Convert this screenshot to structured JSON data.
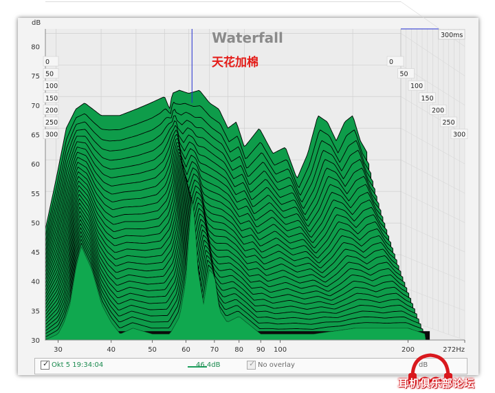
{
  "chart_data": {
    "type": "area",
    "title": "Waterfall",
    "annotation": "天花加棉",
    "ylabel": "dB",
    "xunit": "Hz",
    "ylim": [
      30,
      83
    ],
    "xlim": [
      28,
      272
    ],
    "xscale": "log",
    "y_ticks": [
      "30",
      "35",
      "40",
      "45",
      "50",
      "55",
      "60",
      "65",
      "70",
      "75",
      "80"
    ],
    "x_ticks": [
      {
        "value": 30,
        "label": "30"
      },
      {
        "value": 40,
        "label": "40"
      },
      {
        "value": 50,
        "label": "50"
      },
      {
        "value": 60,
        "label": "60"
      },
      {
        "value": 70,
        "label": "70"
      },
      {
        "value": 80,
        "label": "80"
      },
      {
        "value": 90,
        "label": "90"
      },
      {
        "value": 100,
        "label": "100"
      },
      {
        "value": 200,
        "label": "200"
      },
      {
        "value": 272,
        "label": "272Hz"
      }
    ],
    "time_axis": {
      "unit": "ms",
      "labels_left": [
        "0",
        "50",
        "100",
        "150",
        "200",
        "250",
        "300"
      ],
      "labels_right": [
        "0",
        "50",
        "100",
        "150",
        "200",
        "250",
        "300"
      ],
      "max_label": "300ms",
      "slices": 30
    },
    "cursor_hz": 62,
    "front_slice_db": [
      [
        28,
        30
      ],
      [
        30,
        31
      ],
      [
        31,
        33
      ],
      [
        32,
        36
      ],
      [
        33,
        42
      ],
      [
        34,
        46
      ],
      [
        36,
        42
      ],
      [
        38,
        36
      ],
      [
        40,
        33
      ],
      [
        42,
        31
      ],
      [
        45,
        32
      ],
      [
        50,
        31
      ],
      [
        55,
        31
      ],
      [
        58,
        34
      ],
      [
        60,
        40
      ],
      [
        61,
        48
      ],
      [
        62,
        54
      ],
      [
        63,
        50
      ],
      [
        64,
        42
      ],
      [
        66,
        36
      ],
      [
        68,
        42
      ],
      [
        70,
        41
      ],
      [
        72,
        35
      ],
      [
        75,
        33
      ],
      [
        80,
        34
      ],
      [
        90,
        31
      ],
      [
        100,
        31
      ],
      [
        120,
        31
      ],
      [
        150,
        32
      ],
      [
        200,
        32
      ],
      [
        220,
        31
      ]
    ],
    "back_slice_db": [
      [
        28,
        44
      ],
      [
        30,
        52
      ],
      [
        32,
        60
      ],
      [
        34,
        63
      ],
      [
        36,
        64
      ],
      [
        40,
        62
      ],
      [
        45,
        62
      ],
      [
        50,
        63
      ],
      [
        55,
        64
      ],
      [
        60,
        65
      ],
      [
        62,
        63
      ],
      [
        63,
        65.5
      ],
      [
        66,
        66
      ],
      [
        70,
        65.5
      ],
      [
        75,
        66
      ],
      [
        80,
        64
      ],
      [
        85,
        63
      ],
      [
        90,
        60
      ],
      [
        95,
        61
      ],
      [
        100,
        57
      ],
      [
        110,
        60
      ],
      [
        120,
        56
      ],
      [
        130,
        57
      ],
      [
        140,
        52
      ],
      [
        150,
        56
      ],
      [
        160,
        62
      ],
      [
        170,
        61
      ],
      [
        180,
        58
      ],
      [
        190,
        61
      ],
      [
        200,
        62
      ],
      [
        210,
        58
      ],
      [
        220,
        56
      ]
    ],
    "colors": {
      "fill": "#0e9c4a",
      "edge": "#000000",
      "grid": "#c9c9c9",
      "title": "#8a8a8a",
      "annotation": "#e41b17",
      "cursor": "#1f2bd0"
    }
  },
  "legend": {
    "checked": true,
    "date": "Okt 5 19:34:04",
    "value": "46,4dB",
    "overlay_label": "No overlay",
    "overlay_value": "dB"
  },
  "watermark_text": "耳机俱乐部论坛"
}
